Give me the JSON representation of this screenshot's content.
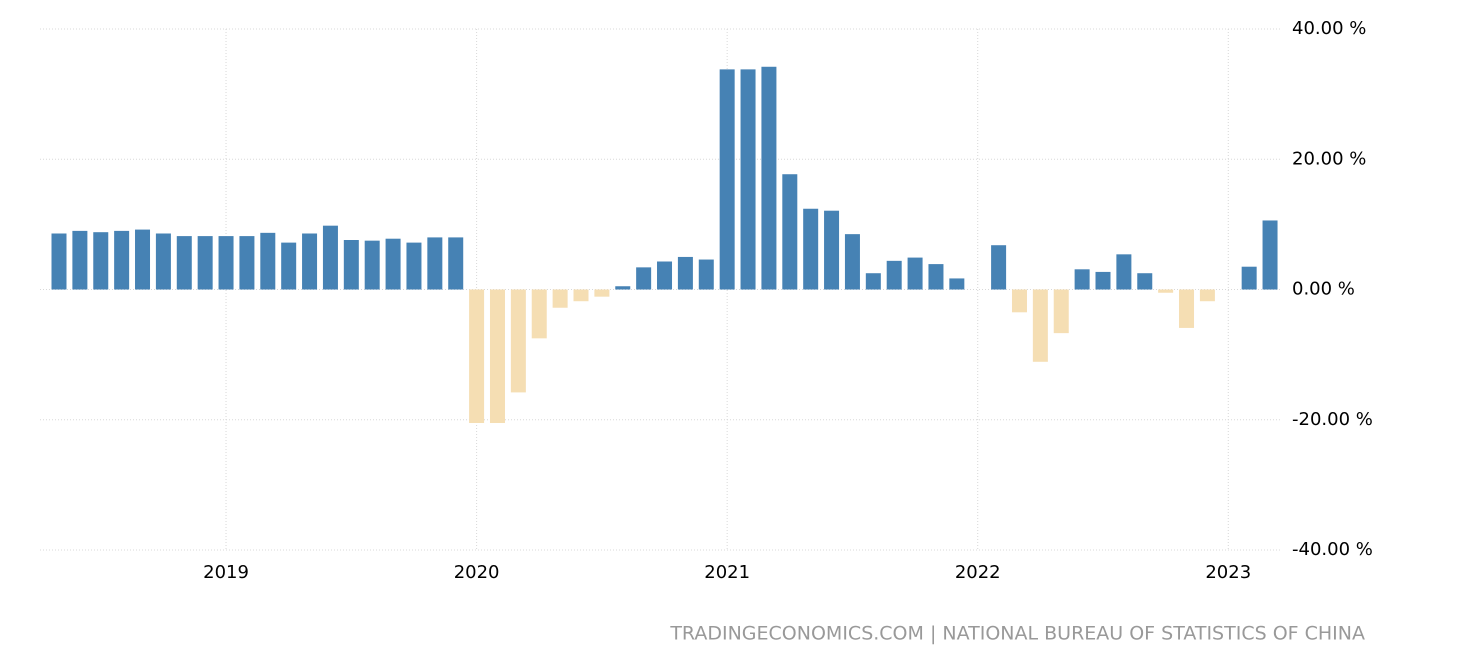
{
  "chart_data": {
    "type": "bar",
    "source": "TRADINGECONOMICS.COM | NATIONAL BUREAU OF STATISTICS OF CHINA",
    "categories": [
      null,
      null,
      null,
      null,
      null,
      null,
      null,
      null,
      "2019",
      null,
      null,
      null,
      null,
      null,
      null,
      null,
      null,
      null,
      null,
      null,
      "2020",
      null,
      null,
      null,
      null,
      null,
      null,
      null,
      null,
      null,
      null,
      null,
      "2021",
      null,
      null,
      null,
      null,
      null,
      null,
      null,
      null,
      null,
      null,
      null,
      "2022",
      null,
      null,
      null,
      null,
      null,
      null,
      null,
      null,
      null,
      null,
      null,
      "2023",
      null,
      null
    ],
    "values": [
      8.6,
      9.0,
      8.8,
      9.0,
      9.2,
      8.6,
      8.2,
      8.2,
      8.2,
      8.2,
      8.7,
      7.2,
      8.6,
      9.8,
      7.6,
      7.5,
      7.8,
      7.2,
      8.0,
      8.0,
      -20.5,
      -20.5,
      -15.8,
      -7.5,
      -2.8,
      -1.8,
      -1.1,
      0.5,
      3.4,
      4.3,
      5.0,
      4.6,
      33.8,
      33.8,
      34.2,
      17.7,
      12.4,
      12.1,
      8.5,
      2.5,
      4.4,
      4.9,
      3.9,
      1.7,
      null,
      6.8,
      -3.5,
      -11.1,
      -6.7,
      3.1,
      2.7,
      5.4,
      2.5,
      -0.5,
      -5.9,
      -1.8,
      null,
      3.5,
      10.6
    ],
    "color": "#4682b4",
    "negative_color": "#f5deb3",
    "ylim": [
      -40,
      40
    ],
    "yticks": [
      {
        "value": -40,
        "label": "-40.00 %"
      },
      {
        "value": -20,
        "label": "-20.00 %"
      },
      {
        "value": 0,
        "label": "0.00 %"
      },
      {
        "value": 20,
        "label": "20.00 %"
      },
      {
        "value": 40,
        "label": "40.00 %"
      }
    ],
    "grid": true
  }
}
